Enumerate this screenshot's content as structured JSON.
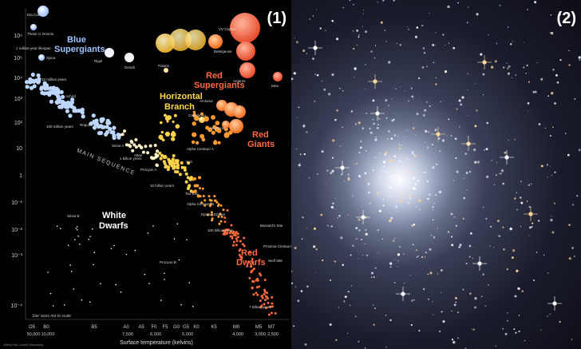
{
  "panel1": {
    "label": "(1)",
    "x_axis_title": "Surface temperature (kelvins)",
    "x_spectral": [
      "O5",
      "B0",
      "B5",
      "A0",
      "A5",
      "F0",
      "F5",
      "G0",
      "G5",
      "K0",
      "K5",
      "M0",
      "M5",
      "M7"
    ],
    "x_temps": [
      "50,000",
      "10,000",
      "7,500",
      "6,000",
      "5,000",
      "4,000",
      "3,000",
      "2,500"
    ],
    "y_ticks": [
      "10⁶",
      "10⁵",
      "10⁴",
      "10³",
      "10²",
      "10",
      "1",
      "10⁻¹",
      "10⁻²",
      "10⁻³",
      "10⁻⁴"
    ],
    "regions": {
      "blue_supergiants": [
        "Blue",
        "Supergiants"
      ],
      "red_supergiants": [
        "Red",
        "Supergiants"
      ],
      "horizontal_branch": [
        "Horizontal",
        "Branch"
      ],
      "red_giants": [
        "Red",
        "Giants"
      ],
      "main_sequence": "MAIN SEQUENCE",
      "white_dwarfs": [
        "White",
        "Dwarfs"
      ],
      "red_dwarfs": [
        "Red",
        "Dwarfs"
      ]
    },
    "star_labels": {
      "eta_carinae": "Eta Carinae",
      "theta_orionis": "Theta¹ C Orionis",
      "one_million": "1 million-year lifespan",
      "spica": "Spica",
      "ten_million": "10 million years",
      "rigel": "Rigel",
      "deneb": "Deneb",
      "vv_cephei": "VV Cephei",
      "betelgeuse": "Betelgeuse",
      "antares": "Antares",
      "mira": "Mira",
      "polaris": "Polaris",
      "achird": "Achird",
      "regulus": "Regulus",
      "hundred_million": "100 million years",
      "arcturus": "Arcturus",
      "capella": "Capella Aa",
      "aldebaran": "Aldebaran",
      "sirius_a": "Sirius A",
      "altair": "Altair",
      "one_billion": "1 billion years",
      "procyon_a": "Procyon A",
      "alpha_cen_a": "Alpha Centauri A",
      "sun": "Sun",
      "ten_billion": "10 billion years",
      "tau_ceti": "Tau Ceti",
      "alpha_cen_b": "Alpha Centauri B",
      "epsilon_eridani": "Epsilon Eridani",
      "hundred_billion": "100 billion years",
      "barnards_star": "Barnard's Star",
      "proxima": "Proxima Centauri",
      "wolf": "Wolf 359",
      "sirius_b": "Sirius B",
      "procyon_b": "Procyon B",
      "seven_trillion": "7 trillion years"
    },
    "footnote": "Star sizes not to scale",
    "credit": "Jeffrey Hall / Lowell Observatory"
  },
  "panel2": {
    "label": "(2)"
  },
  "colors": {
    "background": "#000000",
    "blue_stars": "#9fc6ff",
    "yellow_stars": "#ffd84a",
    "orange_stars": "#ff8a1e",
    "red_stars": "#ff5a3a"
  }
}
